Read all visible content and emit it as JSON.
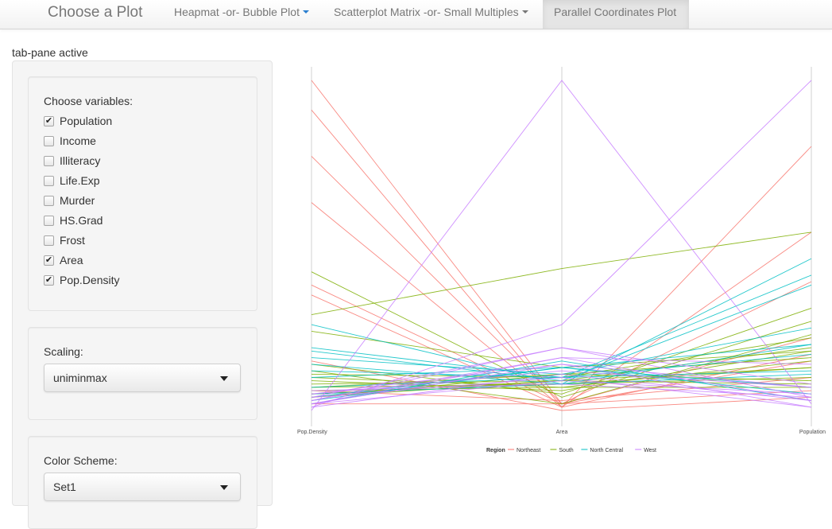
{
  "navbar": {
    "brand": "Choose a Plot",
    "tabs": [
      {
        "label": "Heapmat -or- Bubble Plot"
      },
      {
        "label": "Scatterplot Matrix -or- Small Multiples"
      },
      {
        "label": "Parallel Coordinates Plot"
      }
    ]
  },
  "tab_pane_label": "tab-pane active",
  "sidebar": {
    "variables": {
      "label": "Choose variables:",
      "options": [
        {
          "label": "Population",
          "checked": true
        },
        {
          "label": "Income",
          "checked": false
        },
        {
          "label": "Illiteracy",
          "checked": false
        },
        {
          "label": "Life.Exp",
          "checked": false
        },
        {
          "label": "Murder",
          "checked": false
        },
        {
          "label": "HS.Grad",
          "checked": false
        },
        {
          "label": "Frost",
          "checked": false
        },
        {
          "label": "Area",
          "checked": true
        },
        {
          "label": "Pop.Density",
          "checked": true
        }
      ]
    },
    "scaling": {
      "label": "Scaling:",
      "value": "uniminmax"
    },
    "color_scheme": {
      "label": "Color Scheme:",
      "value": "Set1"
    }
  },
  "chart_data": {
    "type": "line",
    "x": [
      "Pop.Density",
      "Area",
      "Population"
    ],
    "axis_labels": [
      "Pop.Density",
      "Area",
      "Population"
    ],
    "legend_title": "Region",
    "ylim": [
      0,
      1
    ],
    "grid": false,
    "legend_position": "bottom",
    "series": [
      {
        "name": "Northeast",
        "color": "#F8766D",
        "lines": [
          [
            1.0,
            0.02,
            0.15
          ],
          [
            0.91,
            0.01,
            0.8
          ],
          [
            0.77,
            0.02,
            0.39
          ],
          [
            0.63,
            0.01,
            0.54
          ],
          [
            0.38,
            0.02,
            0.22
          ],
          [
            0.35,
            0.01,
            0.17
          ],
          [
            0.15,
            0.0,
            0.04
          ],
          [
            0.06,
            0.03,
            0.1
          ],
          [
            0.02,
            0.02,
            0.06
          ]
        ]
      },
      {
        "name": "South",
        "color": "#7CAE00",
        "lines": [
          [
            0.42,
            0.04,
            0.27
          ],
          [
            0.29,
            0.43,
            0.54
          ],
          [
            0.24,
            0.13,
            0.18
          ],
          [
            0.14,
            0.05,
            0.31
          ],
          [
            0.12,
            0.02,
            0.23
          ],
          [
            0.11,
            0.1,
            0.22
          ],
          [
            0.1,
            0.07,
            0.07
          ],
          [
            0.09,
            0.06,
            0.18
          ],
          [
            0.08,
            0.09,
            0.13
          ],
          [
            0.07,
            0.08,
            0.13
          ],
          [
            0.07,
            0.11,
            0.09
          ],
          [
            0.06,
            0.07,
            0.15
          ],
          [
            0.05,
            0.08,
            0.1
          ],
          [
            0.05,
            0.09,
            0.19
          ],
          [
            0.04,
            0.09,
            0.08
          ],
          [
            0.04,
            0.11,
            0.16
          ]
        ]
      },
      {
        "name": "North Central",
        "color": "#00BFC4",
        "lines": [
          [
            0.26,
            0.08,
            0.46
          ],
          [
            0.19,
            0.1,
            0.41
          ],
          [
            0.18,
            0.09,
            0.38
          ],
          [
            0.16,
            0.11,
            0.25
          ],
          [
            0.14,
            0.08,
            0.2
          ],
          [
            0.12,
            0.1,
            0.12
          ],
          [
            0.1,
            0.13,
            0.2
          ],
          [
            0.07,
            0.1,
            0.17
          ],
          [
            0.05,
            0.08,
            0.11
          ],
          [
            0.04,
            0.13,
            0.07
          ],
          [
            0.03,
            0.13,
            0.05
          ],
          [
            0.02,
            0.15,
            0.03
          ]
        ]
      },
      {
        "name": "West",
        "color": "#C77CFF",
        "lines": [
          [
            0.0,
            1.0,
            0.02
          ],
          [
            0.01,
            0.26,
            1.0
          ],
          [
            0.03,
            0.19,
            0.04
          ],
          [
            0.04,
            0.19,
            0.08
          ],
          [
            0.02,
            0.16,
            0.03
          ],
          [
            0.03,
            0.16,
            0.14
          ],
          [
            0.05,
            0.14,
            0.07
          ],
          [
            0.02,
            0.14,
            0.01
          ],
          [
            0.05,
            0.12,
            0.07
          ],
          [
            0.01,
            0.11,
            0.03
          ],
          [
            0.04,
            0.1,
            0.01
          ],
          [
            0.02,
            0.09,
            0.05
          ],
          [
            0.06,
            0.08,
            0.04
          ]
        ]
      }
    ]
  }
}
